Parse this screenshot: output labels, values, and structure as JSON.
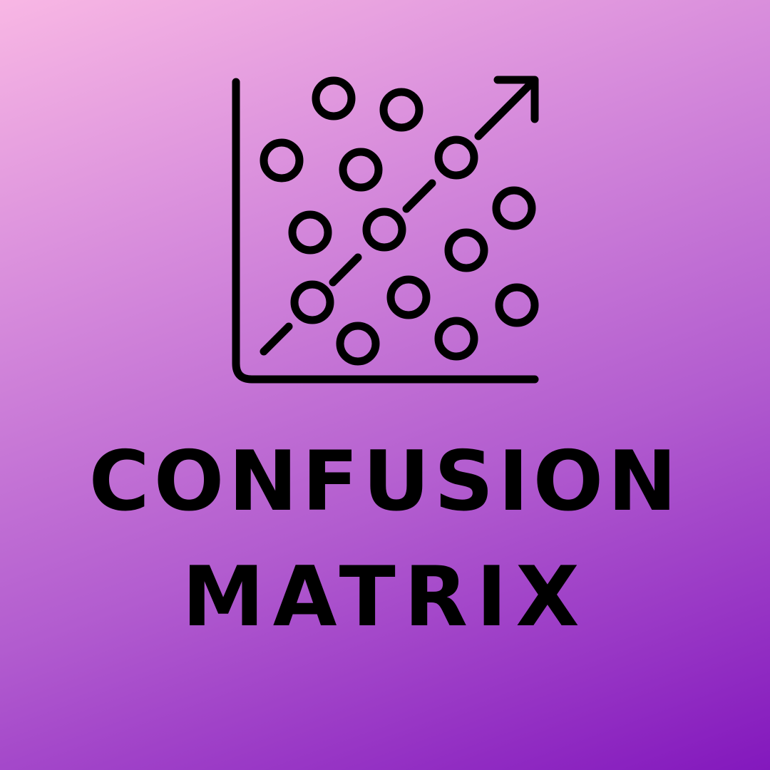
{
  "background": {
    "gradient_colors": [
      "#f8b7e4",
      "#d88ddc",
      "#b25ccf",
      "#8318bd"
    ]
  },
  "icon": {
    "name": "scatter-plot-trend-icon",
    "stroke_color": "#000000"
  },
  "title": {
    "line1": "CONFUSION",
    "line2": "MATRIX",
    "color": "#000000"
  }
}
